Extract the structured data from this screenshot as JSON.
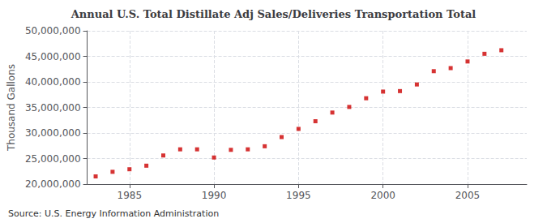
{
  "chart_data": {
    "type": "scatter",
    "title": "Annual U.S. Total Distillate Adj Sales/Deliveries Transportation Total",
    "ylabel": "Thousand Gallons",
    "annotation": "Source: U.S. Energy Information Administration",
    "x": [
      1983,
      1984,
      1985,
      1986,
      1987,
      1988,
      1989,
      1990,
      1991,
      1992,
      1993,
      1994,
      1995,
      1996,
      1997,
      1998,
      1999,
      2000,
      2001,
      2002,
      2003,
      2004,
      2005,
      2006,
      2007
    ],
    "values": [
      21500000,
      22400000,
      22900000,
      23600000,
      25600000,
      26800000,
      26800000,
      25200000,
      26700000,
      26800000,
      27400000,
      29200000,
      30800000,
      32300000,
      34000000,
      35100000,
      36800000,
      38100000,
      38200000,
      39500000,
      42100000,
      42700000,
      44000000,
      45500000,
      46200000
    ],
    "color": "#CC0000",
    "marker": "square",
    "xlim": [
      1982.5,
      2008.5
    ],
    "xticks": [
      1985,
      1990,
      1995,
      2000,
      2005
    ],
    "ylim": [
      20000000,
      50000000
    ],
    "yticks": [
      {
        "value": 20000000,
        "label": "20,000,000"
      },
      {
        "value": 25000000,
        "label": "25,000,000"
      },
      {
        "value": 30000000,
        "label": "30,000,000"
      },
      {
        "value": 35000000,
        "label": "35,000,000"
      },
      {
        "value": 40000000,
        "label": "40,000,000"
      },
      {
        "value": 45000000,
        "label": "45,000,000"
      },
      {
        "value": 50000000,
        "label": "50,000,000"
      }
    ],
    "grid": true
  }
}
